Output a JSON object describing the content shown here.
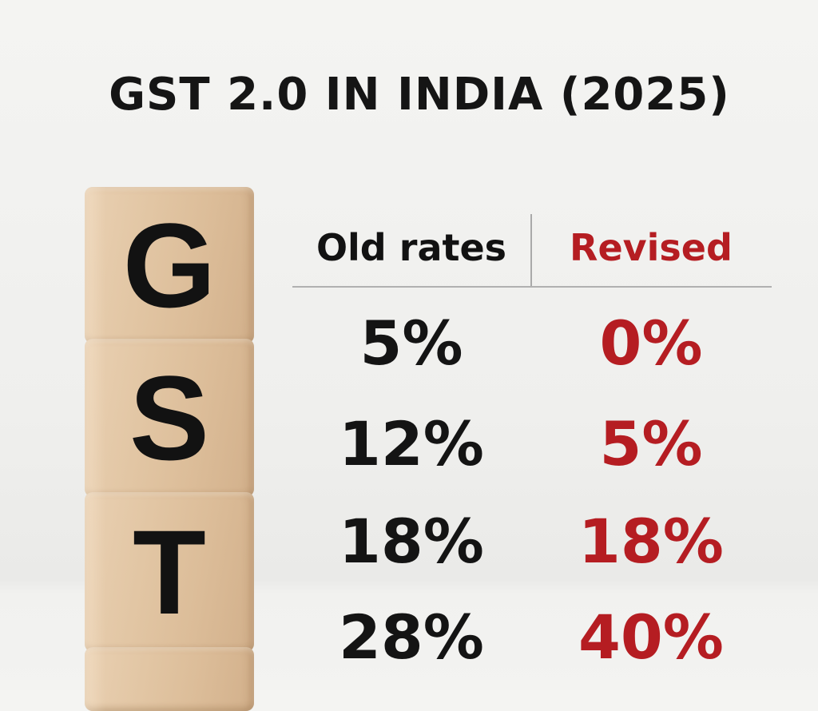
{
  "title": "GST 2.0 IN INDIA (2025)",
  "blocks": [
    "G",
    "S",
    "T"
  ],
  "table": {
    "headers": {
      "old": "Old rates",
      "revised": "Revised"
    },
    "rows": [
      {
        "old": "5%",
        "revised": "0%"
      },
      {
        "old": "12%",
        "revised": "5%"
      },
      {
        "old": "18%",
        "revised": "18%"
      },
      {
        "old": "28%",
        "revised": "40%"
      }
    ]
  },
  "colors": {
    "accent": "#b51d22",
    "text": "#141414",
    "background": "#f2f2f0",
    "wood": "#dfc29f"
  }
}
